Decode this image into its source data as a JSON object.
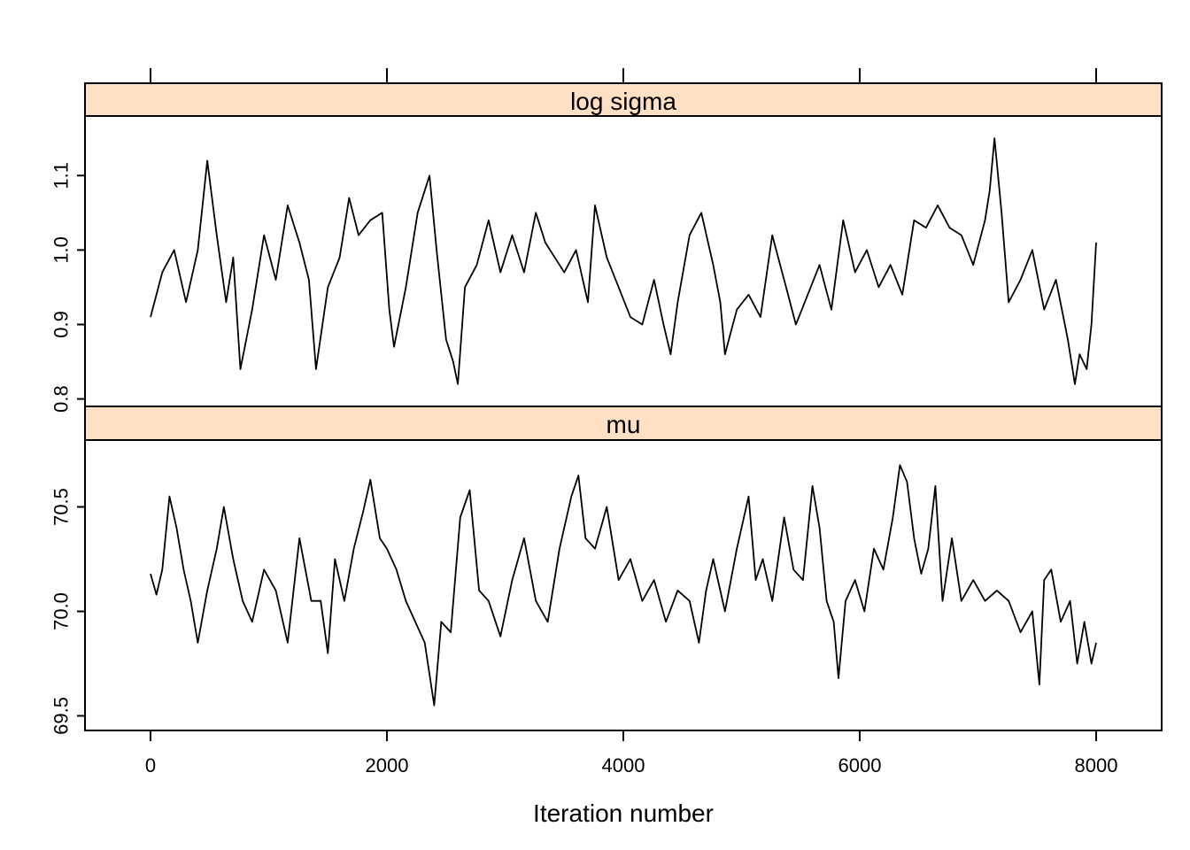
{
  "chart_data": {
    "type": "line",
    "xlabel": "Iteration number",
    "xlim": [
      0,
      8000
    ],
    "x_ticks": [
      0,
      2000,
      4000,
      6000,
      8000
    ],
    "x_tick_labels": [
      "0",
      "2000",
      "4000",
      "6000",
      "8000"
    ],
    "strip_color": "#ffe0c4",
    "line_color": "#000000",
    "grid": false,
    "panels": [
      {
        "strip_label": "log sigma",
        "ylim": [
          0.79,
          1.18
        ],
        "y_ticks": [
          0.8,
          0.9,
          1.0,
          1.1
        ],
        "y_tick_labels": [
          "0.8",
          "0.9",
          "1.0",
          "1.1"
        ],
        "series": [
          {
            "x": [
              0,
              100,
              200,
              300,
              400,
              480,
              560,
              640,
              700,
              760,
              860,
              960,
              1060,
              1160,
              1260,
              1340,
              1400,
              1500,
              1600,
              1680,
              1760,
              1860,
              1960,
              2020,
              2060,
              2160,
              2260,
              2360,
              2420,
              2500,
              2560,
              2600,
              2660,
              2760,
              2860,
              2960,
              3060,
              3160,
              3260,
              3340,
              3420,
              3500,
              3600,
              3700,
              3760,
              3860,
              3960,
              4060,
              4160,
              4260,
              4340,
              4400,
              4460,
              4560,
              4660,
              4760,
              4820,
              4860,
              4960,
              5060,
              5160,
              5260,
              5360,
              5460,
              5560,
              5660,
              5760,
              5860,
              5960,
              6060,
              6160,
              6260,
              6360,
              6460,
              6560,
              6660,
              6760,
              6860,
              6960,
              7060,
              7100,
              7140,
              7200,
              7260,
              7360,
              7460,
              7560,
              7660,
              7760,
              7820,
              7860,
              7920,
              7960,
              8000
            ],
            "y": [
              0.91,
              0.97,
              1.0,
              0.93,
              1.0,
              1.12,
              1.02,
              0.93,
              0.99,
              0.84,
              0.92,
              1.02,
              0.96,
              1.06,
              1.01,
              0.96,
              0.84,
              0.95,
              0.99,
              1.07,
              1.02,
              1.04,
              1.05,
              0.92,
              0.87,
              0.95,
              1.05,
              1.1,
              1.0,
              0.88,
              0.85,
              0.82,
              0.95,
              0.98,
              1.04,
              0.97,
              1.02,
              0.97,
              1.05,
              1.01,
              0.99,
              0.97,
              1.0,
              0.93,
              1.06,
              0.99,
              0.95,
              0.91,
              0.9,
              0.96,
              0.9,
              0.86,
              0.93,
              1.02,
              1.05,
              0.98,
              0.93,
              0.86,
              0.92,
              0.94,
              0.91,
              1.02,
              0.96,
              0.9,
              0.94,
              0.98,
              0.92,
              1.04,
              0.97,
              1.0,
              0.95,
              0.98,
              0.94,
              1.04,
              1.03,
              1.06,
              1.03,
              1.02,
              0.98,
              1.04,
              1.08,
              1.15,
              1.05,
              0.93,
              0.96,
              1.0,
              0.92,
              0.96,
              0.88,
              0.82,
              0.86,
              0.84,
              0.9,
              1.01
            ]
          }
        ]
      },
      {
        "strip_label": "mu",
        "ylim": [
          69.43,
          70.82
        ],
        "y_ticks": [
          69.5,
          70.0,
          70.5
        ],
        "y_tick_labels": [
          "69.5",
          "70.0",
          "70.5"
        ],
        "series": [
          {
            "x": [
              0,
              50,
              100,
              160,
              220,
              280,
              340,
              400,
              480,
              560,
              620,
              700,
              780,
              860,
              960,
              1060,
              1160,
              1260,
              1360,
              1440,
              1500,
              1560,
              1640,
              1720,
              1800,
              1860,
              1940,
              2000,
              2080,
              2160,
              2240,
              2320,
              2400,
              2460,
              2540,
              2620,
              2700,
              2780,
              2860,
              2960,
              3060,
              3160,
              3260,
              3360,
              3460,
              3560,
              3620,
              3680,
              3760,
              3860,
              3960,
              4060,
              4160,
              4260,
              4360,
              4460,
              4560,
              4640,
              4700,
              4760,
              4860,
              4960,
              5060,
              5120,
              5180,
              5260,
              5360,
              5440,
              5520,
              5600,
              5660,
              5720,
              5780,
              5820,
              5880,
              5960,
              6040,
              6120,
              6200,
              6280,
              6340,
              6400,
              6460,
              6520,
              6580,
              6640,
              6700,
              6780,
              6860,
              6960,
              7060,
              7160,
              7260,
              7360,
              7460,
              7520,
              7560,
              7620,
              7700,
              7780,
              7840,
              7900,
              7960,
              8000
            ],
            "y": [
              70.18,
              70.08,
              70.2,
              70.55,
              70.4,
              70.2,
              70.05,
              69.85,
              70.1,
              70.3,
              70.5,
              70.25,
              70.05,
              69.95,
              70.2,
              70.1,
              69.85,
              70.35,
              70.05,
              70.05,
              69.8,
              70.25,
              70.05,
              70.3,
              70.48,
              70.63,
              70.35,
              70.3,
              70.2,
              70.05,
              69.95,
              69.85,
              69.55,
              69.95,
              69.9,
              70.45,
              70.58,
              70.1,
              70.05,
              69.88,
              70.15,
              70.35,
              70.05,
              69.95,
              70.3,
              70.55,
              70.65,
              70.35,
              70.3,
              70.5,
              70.15,
              70.25,
              70.05,
              70.15,
              69.95,
              70.1,
              70.05,
              69.85,
              70.1,
              70.25,
              70.0,
              70.3,
              70.55,
              70.15,
              70.25,
              70.05,
              70.45,
              70.2,
              70.15,
              70.6,
              70.4,
              70.05,
              69.95,
              69.68,
              70.05,
              70.15,
              70.0,
              70.3,
              70.2,
              70.45,
              70.7,
              70.62,
              70.35,
              70.18,
              70.3,
              70.6,
              70.05,
              70.35,
              70.05,
              70.15,
              70.05,
              70.1,
              70.05,
              69.9,
              70.0,
              69.65,
              70.15,
              70.2,
              69.95,
              70.05,
              69.75,
              69.95,
              69.75,
              69.85
            ]
          }
        ]
      }
    ]
  }
}
